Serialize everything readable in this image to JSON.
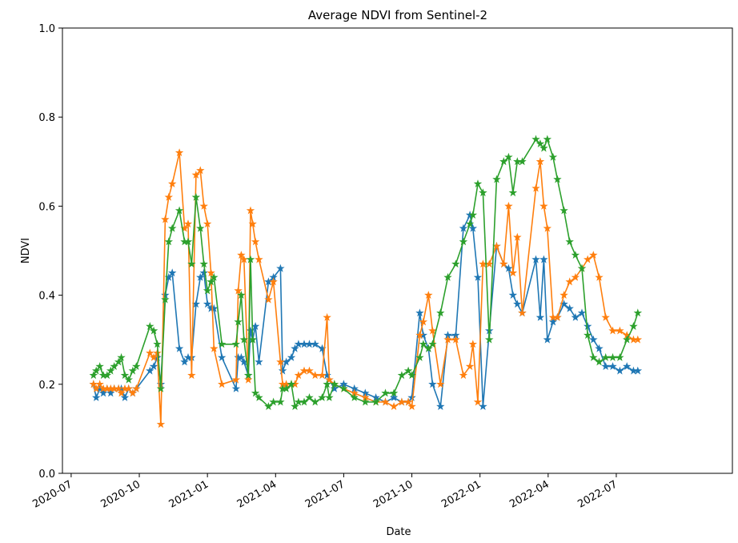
{
  "chart_data": {
    "type": "line",
    "title": "Average NDVI from Sentinel-2",
    "xlabel": "Date",
    "ylabel": "NDVI",
    "x": [
      2020.582,
      2020.592,
      2020.605,
      2020.618,
      2020.632,
      2020.645,
      2020.658,
      2020.674,
      2020.684,
      2020.697,
      2020.711,
      2020.726,
      2020.739,
      2020.789,
      2020.803,
      2020.816,
      2020.829,
      2020.845,
      2020.858,
      2020.871,
      2020.897,
      2020.916,
      2020.929,
      2020.942,
      2020.958,
      2020.974,
      2020.987,
      2021.0,
      2021.013,
      2021.024,
      2021.053,
      2021.105,
      2021.113,
      2021.124,
      2021.134,
      2021.15,
      2021.158,
      2021.166,
      2021.176,
      2021.189,
      2021.224,
      2021.242,
      2021.268,
      2021.276,
      2021.289,
      2021.308,
      2021.321,
      2021.334,
      2021.355,
      2021.374,
      2021.395,
      2021.421,
      2021.439,
      2021.447,
      2021.466,
      2021.5,
      2021.539,
      2021.579,
      2021.618,
      2021.653,
      2021.684,
      2021.713,
      2021.737,
      2021.75,
      2021.779,
      2021.792,
      2021.811,
      2021.826,
      2021.855,
      2021.882,
      2021.911,
      2021.939,
      2021.963,
      2021.974,
      2021.992,
      2022.011,
      2022.034,
      2022.061,
      2022.087,
      2022.105,
      2022.121,
      2022.137,
      2022.155,
      2022.205,
      2022.221,
      2022.234,
      2022.247,
      2022.268,
      2022.284,
      2022.308,
      2022.329,
      2022.35,
      2022.374,
      2022.395,
      2022.416,
      2022.437,
      2022.461,
      2022.487,
      2022.513,
      2022.539,
      2022.563,
      2022.579
    ],
    "series": [
      {
        "color": "#1f77b4",
        "values": [
          0.2,
          0.17,
          0.19,
          0.18,
          0.19,
          0.18,
          0.19,
          0.19,
          0.19,
          0.17,
          0.19,
          0.18,
          0.19,
          0.23,
          0.24,
          0.26,
          0.2,
          0.4,
          0.44,
          0.45,
          0.28,
          0.25,
          0.26,
          0.26,
          0.38,
          0.44,
          0.45,
          0.38,
          0.37,
          0.37,
          0.26,
          0.19,
          0.26,
          0.26,
          0.25,
          0.22,
          0.32,
          0.3,
          0.33,
          0.25,
          0.43,
          0.44,
          0.46,
          0.23,
          0.25,
          0.26,
          0.28,
          0.29,
          0.29,
          0.29,
          0.29,
          0.28,
          0.22,
          0.21,
          0.19,
          0.2,
          0.19,
          0.18,
          0.17,
          0.16,
          0.17,
          0.16,
          0.16,
          0.17,
          0.36,
          0.31,
          0.28,
          0.2,
          0.15,
          0.31,
          0.31,
          0.55,
          0.58,
          0.55,
          0.44,
          0.15,
          0.32,
          0.51,
          0.47,
          0.46,
          0.4,
          0.38,
          0.36,
          0.48,
          0.35,
          0.48,
          0.3,
          0.34,
          0.35,
          0.38,
          0.37,
          0.35,
          0.36,
          0.33,
          0.3,
          0.28,
          0.24,
          0.24,
          0.23,
          0.24,
          0.23,
          0.23
        ]
      },
      {
        "color": "#ff7f0e",
        "values": [
          0.2,
          0.19,
          0.2,
          0.19,
          0.19,
          0.19,
          0.19,
          0.19,
          0.18,
          0.19,
          0.19,
          0.18,
          0.19,
          0.27,
          0.26,
          0.27,
          0.11,
          0.57,
          0.62,
          0.65,
          0.72,
          0.55,
          0.56,
          0.22,
          0.67,
          0.68,
          0.6,
          0.56,
          0.45,
          0.28,
          0.2,
          0.21,
          0.41,
          0.49,
          0.48,
          0.21,
          0.59,
          0.56,
          0.52,
          0.48,
          0.39,
          0.43,
          0.25,
          0.2,
          0.2,
          0.2,
          0.2,
          0.22,
          0.23,
          0.23,
          0.22,
          0.22,
          0.35,
          0.21,
          0.2,
          0.19,
          0.18,
          0.17,
          0.16,
          0.16,
          0.15,
          0.16,
          0.16,
          0.15,
          0.31,
          0.34,
          0.4,
          0.32,
          0.2,
          0.3,
          0.3,
          0.22,
          0.24,
          0.29,
          0.16,
          0.47,
          0.47,
          0.51,
          0.47,
          0.6,
          0.45,
          0.53,
          0.36,
          0.64,
          0.7,
          0.6,
          0.55,
          0.35,
          0.35,
          0.4,
          0.43,
          0.44,
          0.46,
          0.48,
          0.49,
          0.44,
          0.35,
          0.32,
          0.32,
          0.31,
          0.3,
          0.3
        ]
      },
      {
        "color": "#2ca02c",
        "values": [
          0.22,
          0.23,
          0.24,
          0.22,
          0.22,
          0.23,
          0.24,
          0.25,
          0.26,
          0.22,
          0.21,
          0.23,
          0.24,
          0.33,
          0.32,
          0.29,
          0.19,
          0.39,
          0.52,
          0.55,
          0.59,
          0.52,
          0.52,
          0.47,
          0.62,
          0.55,
          0.47,
          0.41,
          0.43,
          0.44,
          0.29,
          0.29,
          0.34,
          0.4,
          0.3,
          0.22,
          0.48,
          0.3,
          0.18,
          0.17,
          0.15,
          0.16,
          0.16,
          0.19,
          0.19,
          0.2,
          0.15,
          0.16,
          0.16,
          0.17,
          0.16,
          0.17,
          0.2,
          0.17,
          0.2,
          0.19,
          0.17,
          0.16,
          0.16,
          0.18,
          0.18,
          0.22,
          0.23,
          0.22,
          0.26,
          0.29,
          0.28,
          0.29,
          0.36,
          0.44,
          0.47,
          0.52,
          0.56,
          0.58,
          0.65,
          0.63,
          0.3,
          0.66,
          0.7,
          0.71,
          0.63,
          0.7,
          0.7,
          0.75,
          0.74,
          0.73,
          0.75,
          0.71,
          0.66,
          0.59,
          0.52,
          0.49,
          0.46,
          0.31,
          0.26,
          0.25,
          0.26,
          0.26,
          0.26,
          0.3,
          0.33,
          0.36
        ]
      }
    ],
    "xlim": [
      2020.468,
      2022.926
    ],
    "xticks": [
      {
        "value": 2020.5,
        "label": "2020-07"
      },
      {
        "value": 2020.75,
        "label": "2020-10"
      },
      {
        "value": 2021.0,
        "label": "2021-01"
      },
      {
        "value": 2021.25,
        "label": "2021-04"
      },
      {
        "value": 2021.5,
        "label": "2021-07"
      },
      {
        "value": 2021.75,
        "label": "2021-10"
      },
      {
        "value": 2022.0,
        "label": "2022-01"
      },
      {
        "value": 2022.25,
        "label": "2022-04"
      },
      {
        "value": 2022.5,
        "label": "2022-07"
      }
    ],
    "ylim": [
      0,
      1
    ],
    "yticks": [
      {
        "value": 0,
        "label": "0.0"
      },
      0.2,
      0.4,
      0.6,
      0.8,
      {
        "value": 1,
        "label": "1.0"
      }
    ]
  }
}
